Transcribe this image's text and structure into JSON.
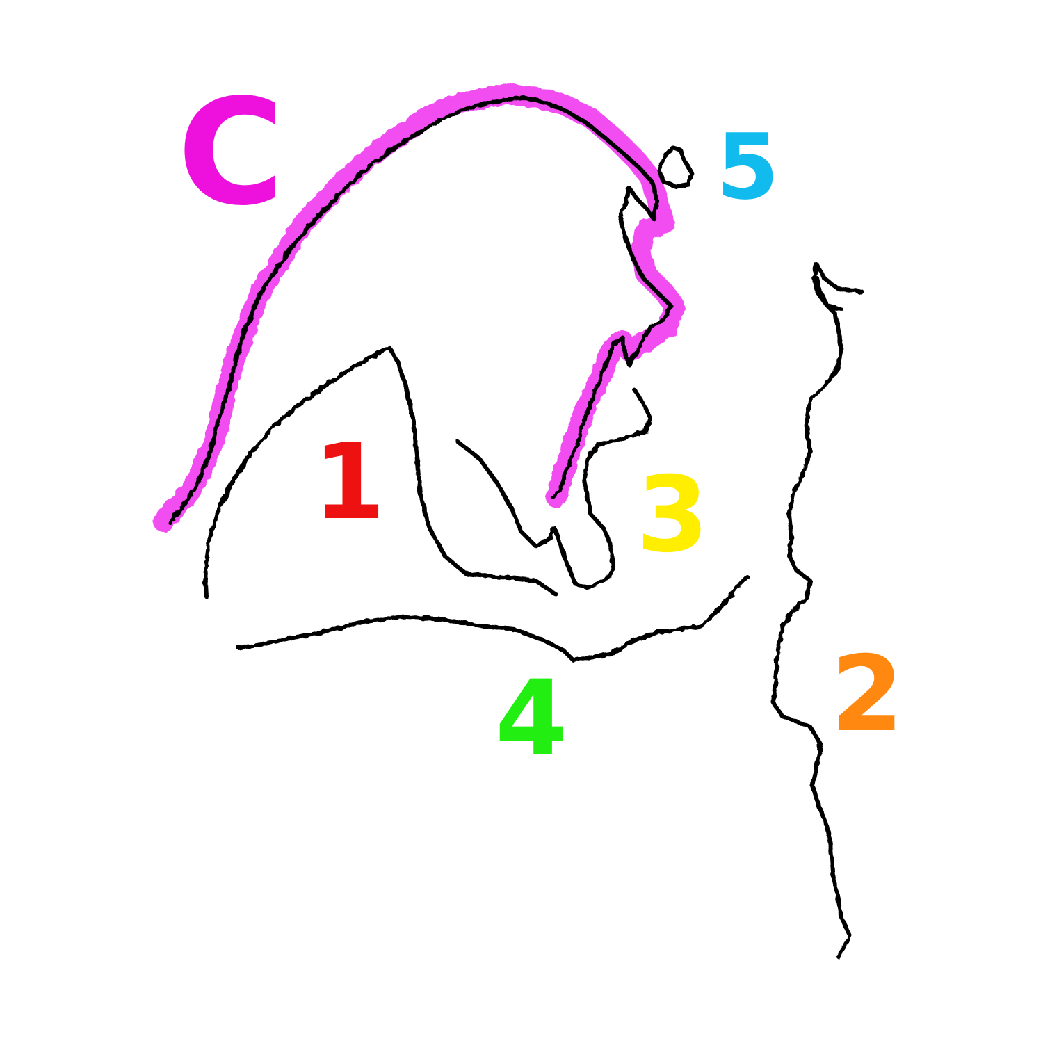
{
  "colors": {
    "line": "#000000",
    "highlight": "#ee22ee"
  },
  "labels": [
    {
      "id": "label-c",
      "text": "C",
      "color": "#ee11dd"
    },
    {
      "id": "label-1",
      "text": "1",
      "color": "#ee1111"
    },
    {
      "id": "label-2",
      "text": "2",
      "color": "#ff8811"
    },
    {
      "id": "label-3",
      "text": "3",
      "color": "#ffee00"
    },
    {
      "id": "label-4",
      "text": "4",
      "color": "#22ee11"
    },
    {
      "id": "label-5",
      "text": "5",
      "color": "#11bbee"
    }
  ]
}
